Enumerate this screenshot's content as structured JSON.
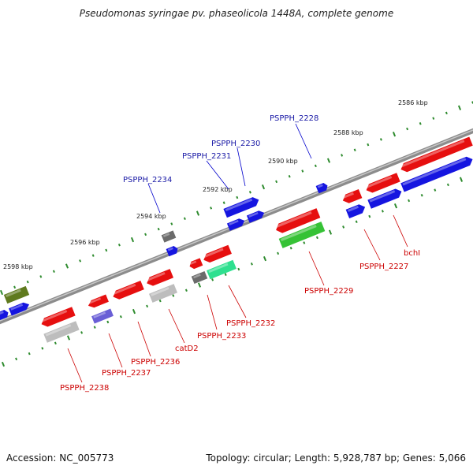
{
  "title": "Pseudomonas syringae pv. phaseolicola 1448A, complete genome",
  "footer": {
    "accession": "Accession: NC_005773",
    "summary": "Topology: circular; Length: 5,928,787 bp; Genes: 5,066"
  },
  "colors": {
    "backbone": "#7a7a7a",
    "tick": "#2e8b2e",
    "plus_label": "#1a1aa6",
    "minus_label": "#cc0000"
  },
  "scale": {
    "labels": [
      "2586 kbp",
      "2588 kbp",
      "2590 kbp",
      "2592 kbp",
      "2594 kbp",
      "2596 kbp",
      "2598 kbp"
    ]
  },
  "genes": {
    "plus": [
      "PSPPH_2228",
      "PSPPH_2230",
      "PSPPH_2231",
      "PSPPH_2234"
    ],
    "minus": [
      "bchI",
      "PSPPH_2227",
      "PSPPH_2229",
      "PSPPH_2232",
      "PSPPH_2233",
      "catD2",
      "PSPPH_2236",
      "PSPPH_2237",
      "PSPPH_2238"
    ]
  }
}
